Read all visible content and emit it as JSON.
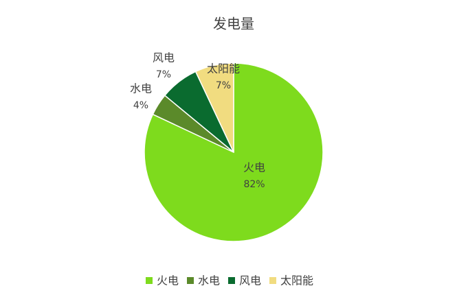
{
  "chart_data": {
    "type": "pie",
    "title": "发电量",
    "categories": [
      "火电",
      "水电",
      "风电",
      "太阳能"
    ],
    "values": [
      82,
      4,
      7,
      7
    ],
    "value_labels": [
      "82%",
      "4%",
      "7%",
      "7%"
    ],
    "colors": [
      "#7edb1d",
      "#5b8a2a",
      "#0a6b2f",
      "#f1dc80"
    ],
    "legend": "bottom"
  }
}
